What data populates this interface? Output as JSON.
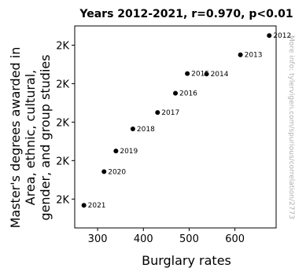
{
  "chart_data": {
    "type": "scatter",
    "title": "Years 2012-2021, r=0.970, p<0.01",
    "xlabel": "Burglary rates",
    "ylabel_lines": [
      "Master's degrees awarded in",
      "Area, ethnic, cultural,",
      "gender, and group studies"
    ],
    "xlim": [
      250,
      690
    ],
    "ylim": [
      1720,
      2140
    ],
    "xticks": [
      300,
      400,
      500,
      600
    ],
    "yticks": [
      {
        "value": 1780,
        "label": "2K"
      },
      {
        "value": 1860,
        "label": "2K"
      },
      {
        "value": 1940,
        "label": "2K"
      },
      {
        "value": 2020,
        "label": "2K"
      },
      {
        "value": 2100,
        "label": "2K"
      }
    ],
    "points": [
      {
        "label": "2012",
        "x": 675,
        "y": 2120
      },
      {
        "label": "2013",
        "x": 612,
        "y": 2080
      },
      {
        "label": "2014",
        "x": 538,
        "y": 2040
      },
      {
        "label": "2015",
        "x": 496,
        "y": 2041
      },
      {
        "label": "2016",
        "x": 470,
        "y": 2000
      },
      {
        "label": "2017",
        "x": 431,
        "y": 1960
      },
      {
        "label": "2018",
        "x": 377,
        "y": 1926
      },
      {
        "label": "2019",
        "x": 340,
        "y": 1880
      },
      {
        "label": "2020",
        "x": 314,
        "y": 1837
      },
      {
        "label": "2021",
        "x": 270,
        "y": 1767
      }
    ],
    "grid": false,
    "marker_color": "#000000"
  },
  "watermark": "More info: tylervigen.com/spurious/correlation/2773"
}
